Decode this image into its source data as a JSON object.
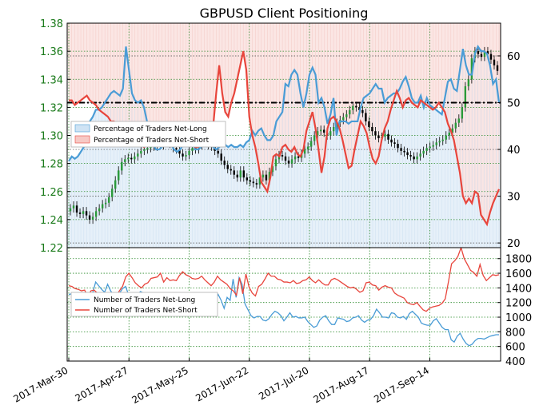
{
  "chart_data": [
    {
      "type": "line",
      "title": "GBPUSD Client Positioning",
      "x_ticks": [
        "2017-Mar-30",
        "2017-Apr-27",
        "2017-May-25",
        "2017-Jun-22",
        "2017-Jul-20",
        "2017-Aug-17",
        "2017-Sep-14"
      ],
      "y_left": {
        "label": "",
        "range": [
          1.22,
          1.38
        ],
        "ticks": [
          "1.22",
          "1.24",
          "1.26",
          "1.28",
          "1.30",
          "1.32",
          "1.34",
          "1.36",
          "1.38"
        ]
      },
      "y_right": {
        "label": "",
        "range": [
          19,
          67
        ],
        "ticks": [
          "20",
          "30",
          "40",
          "50",
          "60"
        ]
      },
      "reference_line": {
        "value": 50,
        "style": "dash-dot",
        "color": "#000000"
      },
      "legend": {
        "placement": "left",
        "entries": [
          {
            "name": "Percentage of Traders Net-Long",
            "color": "#4a9cd6",
            "fill": "#cfe3f4"
          },
          {
            "name": "Percentage of Traders Net-Short",
            "color": "#e8453c",
            "fill": "#f7c9c5"
          }
        ]
      },
      "grid": true,
      "price_series": {
        "name": "GBPUSD",
        "values": [
          1.248,
          1.25,
          1.245,
          1.244,
          1.246,
          1.243,
          1.24,
          1.242,
          1.246,
          1.248,
          1.251,
          1.252,
          1.256,
          1.262,
          1.268,
          1.275,
          1.281,
          1.283,
          1.284,
          1.283,
          1.285,
          1.287,
          1.289,
          1.29,
          1.291,
          1.293,
          1.292,
          1.294,
          1.293,
          1.295,
          1.297,
          1.294,
          1.291,
          1.29,
          1.287,
          1.285,
          1.286,
          1.289,
          1.291,
          1.29,
          1.293,
          1.296,
          1.295,
          1.293,
          1.292,
          1.289,
          1.287,
          1.282,
          1.279,
          1.276,
          1.275,
          1.272,
          1.27,
          1.275,
          1.27,
          1.268,
          1.267,
          1.266,
          1.265,
          1.27,
          1.272,
          1.268,
          1.274,
          1.278,
          1.283,
          1.286,
          1.285,
          1.282,
          1.28,
          1.283,
          1.285,
          1.284,
          1.287,
          1.29,
          1.292,
          1.296,
          1.3,
          1.303,
          1.304,
          1.302,
          1.3,
          1.303,
          1.306,
          1.309,
          1.311,
          1.313,
          1.315,
          1.318,
          1.321,
          1.32,
          1.318,
          1.316,
          1.31,
          1.306,
          1.303,
          1.3,
          1.298,
          1.299,
          1.301,
          1.297,
          1.295,
          1.294,
          1.291,
          1.289,
          1.288,
          1.286,
          1.285,
          1.283,
          1.285,
          1.287,
          1.289,
          1.291,
          1.292,
          1.293,
          1.295,
          1.296,
          1.297,
          1.3,
          1.302,
          1.305,
          1.309,
          1.312,
          1.32,
          1.335,
          1.34,
          1.355,
          1.36,
          1.358,
          1.356,
          1.36,
          1.358,
          1.354,
          1.35,
          1.346
        ]
      },
      "series": [
        {
          "name": "Percentage of Traders Net-Long",
          "values": [
            37.5,
            38.5,
            38.0,
            38.5,
            39.5,
            40.5,
            44.0,
            46.0,
            47.0,
            48.5,
            48.5,
            49.0,
            50.0,
            51.0,
            52.0,
            52.5,
            52.0,
            51.5,
            53.0,
            62.0,
            57.0,
            52.0,
            50.5,
            50.0,
            50.5,
            49.0,
            46.0,
            44.0,
            41.0,
            40.0,
            40.0,
            40.5,
            42.0,
            42.5,
            41.0,
            40.0,
            39.5,
            40.0,
            41.0,
            42.5,
            43.5,
            42.0,
            40.0,
            40.0,
            40.5,
            42.5,
            43.0,
            42.0,
            40.5,
            40.0,
            40.5,
            41.0,
            41.0,
            40.5,
            41.0,
            40.5,
            40.5,
            41.0,
            40.5,
            41.5,
            42.0,
            44.0,
            43.0,
            44.0,
            44.5,
            43.0,
            42.0,
            42.0,
            43.0,
            46.0,
            47.0,
            48.0,
            54.0,
            53.5,
            56.0,
            57.0,
            56.0,
            52.0,
            49.0,
            52.0,
            56.0,
            57.5,
            56.0,
            50.0,
            51.0,
            49.0,
            45.5,
            47.5,
            51.0,
            43.0,
            46.0,
            46.0,
            46.0,
            45.5,
            46.0,
            46.0,
            46.0,
            49.0,
            51.0,
            51.5,
            52.0,
            53.0,
            54.0,
            53.0,
            53.0,
            50.0,
            51.0,
            51.5,
            52.0,
            52.0,
            53.0,
            54.5,
            55.5,
            53.5,
            51.0,
            50.0,
            50.0,
            51.5,
            49.0,
            51.0,
            49.5,
            49.0,
            48.5,
            48.0,
            47.5,
            51.0,
            54.5,
            55.0,
            53.0,
            52.5,
            57.0,
            61.5,
            58.0,
            56.0,
            56.0,
            60.5,
            62.0,
            61.0,
            61.0,
            60.5,
            58.0,
            54.0,
            55.0,
            50.0
          ],
          "short_values": [
            50.5,
            50.5,
            49.5,
            50.0,
            50.5,
            51.0,
            51.5,
            50.5,
            50.0,
            49.5,
            48.5,
            48.0,
            47.5,
            47.0,
            46.0,
            46.0,
            45.5,
            45.0,
            44.0,
            43.5,
            43.5,
            42.5,
            42.0,
            41.5,
            41.0,
            40.5,
            41.0,
            41.5,
            42.0,
            42.5,
            43.0,
            42.5,
            42.0,
            41.5,
            41.0,
            41.5,
            42.0,
            42.5,
            42.5,
            42.0,
            41.5,
            41.0,
            40.5,
            40.5,
            41.0,
            42.0,
            42.5,
            43.0,
            45.0,
            52.0,
            58.0,
            52.0,
            48.0,
            47.0,
            50.0,
            52.0,
            55.0,
            58.0,
            61.0,
            57.0,
            47.0,
            43.0,
            40.5,
            37.0,
            33.0,
            32.0,
            31.0,
            34.0,
            38.5,
            39.0,
            38.5,
            40.5,
            41.0,
            40.0,
            39.5,
            40.5,
            39.0,
            38.5,
            40.0,
            44.0,
            46.0,
            48.0,
            44.5,
            40.0,
            35.0,
            38.5,
            44.5,
            46.5,
            47.0,
            46.0,
            44.5,
            42.0,
            39.0,
            36.0,
            36.5,
            40.0,
            43.0,
            46.0,
            45.0,
            43.5,
            40.5,
            38.0,
            37.0,
            38.5,
            42.0,
            44.5,
            46.0,
            48.5,
            50.5,
            52.5,
            51.0,
            49.0,
            50.5,
            51.0,
            50.0,
            49.5,
            49.0,
            50.5,
            50.0,
            49.5,
            49.0,
            48.5,
            49.0,
            50.0,
            49.0,
            48.0,
            45.5,
            44.0,
            42.0,
            38.5,
            35.0,
            30.0,
            28.5,
            29.5,
            28.5,
            31.0,
            30.5,
            26.0,
            25.0,
            24.0,
            26.5,
            28.5,
            30.0,
            31.5,
            32.5,
            31.0,
            30.0,
            31.0,
            32.0,
            33.5
          ]
        }
      ]
    },
    {
      "type": "line",
      "title": "",
      "y_right": {
        "label": "",
        "range": [
          400,
          1950
        ],
        "ticks": [
          "400",
          "600",
          "800",
          "1000",
          "1200",
          "1400",
          "1600",
          "1800"
        ]
      },
      "legend": {
        "placement": "left",
        "entries": [
          {
            "name": "Number of Traders Net-Long",
            "color": "#4a9cd6"
          },
          {
            "name": "Number of Traders Net-Short",
            "color": "#e8453c"
          }
        ]
      },
      "grid": true,
      "series": [
        {
          "name": "Number of Traders Net-Long",
          "color": "#4a9cd6",
          "values": [
            1310,
            1320,
            1300,
            1250,
            1230,
            1210,
            1250,
            1290,
            1330,
            1480,
            1430,
            1380,
            1340,
            1450,
            1360,
            1300,
            1280,
            1330,
            1390,
            1420,
            1310,
            1290,
            1250,
            1310,
            1350,
            1330,
            1300,
            1270,
            1250,
            1180,
            1230,
            1170,
            1150,
            1160,
            1170,
            1130,
            1090,
            1050,
            1040,
            1100,
            1150,
            1080,
            1100,
            1180,
            1130,
            1090,
            1150,
            1180,
            1200,
            1240,
            1310,
            1230,
            1120,
            1270,
            1230,
            1520,
            1270,
            1540,
            1450,
            1180,
            1100,
            1020,
            990,
            1010,
            1010,
            960,
            950,
            980,
            1040,
            1080,
            1060,
            1020,
            950,
            1000,
            1060,
            1000,
            1010,
            990,
            990,
            1000,
            940,
            900,
            860,
            880,
            960,
            1000,
            1020,
            950,
            900,
            900,
            990,
            980,
            970,
            940,
            950,
            990,
            1000,
            1020,
            960,
            930,
            960,
            970,
            1020,
            1110,
            1060,
            1000,
            1000,
            990,
            1060,
            1050,
            1000,
            990,
            1010,
            970,
            1050,
            1080,
            1040,
            1000,
            920,
            900,
            890,
            890,
            950,
            980,
            920,
            860,
            830,
            830,
            690,
            660,
            740,
            780,
            700,
            640,
            610,
            630,
            680,
            710,
            710,
            700,
            720,
            740,
            750,
            760,
            760
          ]
        },
        {
          "name": "Number of Traders Net-Short",
          "color": "#e8453c",
          "values": [
            1430,
            1420,
            1390,
            1380,
            1360,
            1370,
            1280,
            1360,
            1370,
            1330,
            1280,
            1270,
            1260,
            1300,
            1320,
            1290,
            1360,
            1420,
            1550,
            1600,
            1540,
            1470,
            1430,
            1400,
            1450,
            1470,
            1530,
            1540,
            1550,
            1600,
            1480,
            1540,
            1500,
            1510,
            1500,
            1570,
            1620,
            1580,
            1560,
            1530,
            1520,
            1530,
            1560,
            1510,
            1470,
            1430,
            1480,
            1560,
            1510,
            1480,
            1450,
            1390,
            1360,
            1300,
            1540,
            1320,
            1590,
            1410,
            1330,
            1290,
            1420,
            1450,
            1520,
            1600,
            1560,
            1560,
            1520,
            1510,
            1480,
            1480,
            1470,
            1500,
            1460,
            1470,
            1500,
            1510,
            1550,
            1500,
            1470,
            1510,
            1470,
            1440,
            1440,
            1510,
            1530,
            1510,
            1480,
            1450,
            1420,
            1400,
            1410,
            1380,
            1340,
            1360,
            1470,
            1480,
            1440,
            1430,
            1370,
            1410,
            1430,
            1410,
            1400,
            1330,
            1300,
            1280,
            1260,
            1200,
            1180,
            1170,
            1200,
            1150,
            1100,
            1080,
            1120,
            1140,
            1150,
            1160,
            1190,
            1250,
            1480,
            1730,
            1770,
            1830,
            1950,
            1800,
            1720,
            1640,
            1610,
            1560,
            1720,
            1570,
            1500,
            1540,
            1580,
            1570,
            1580
          ]
        }
      ]
    }
  ]
}
